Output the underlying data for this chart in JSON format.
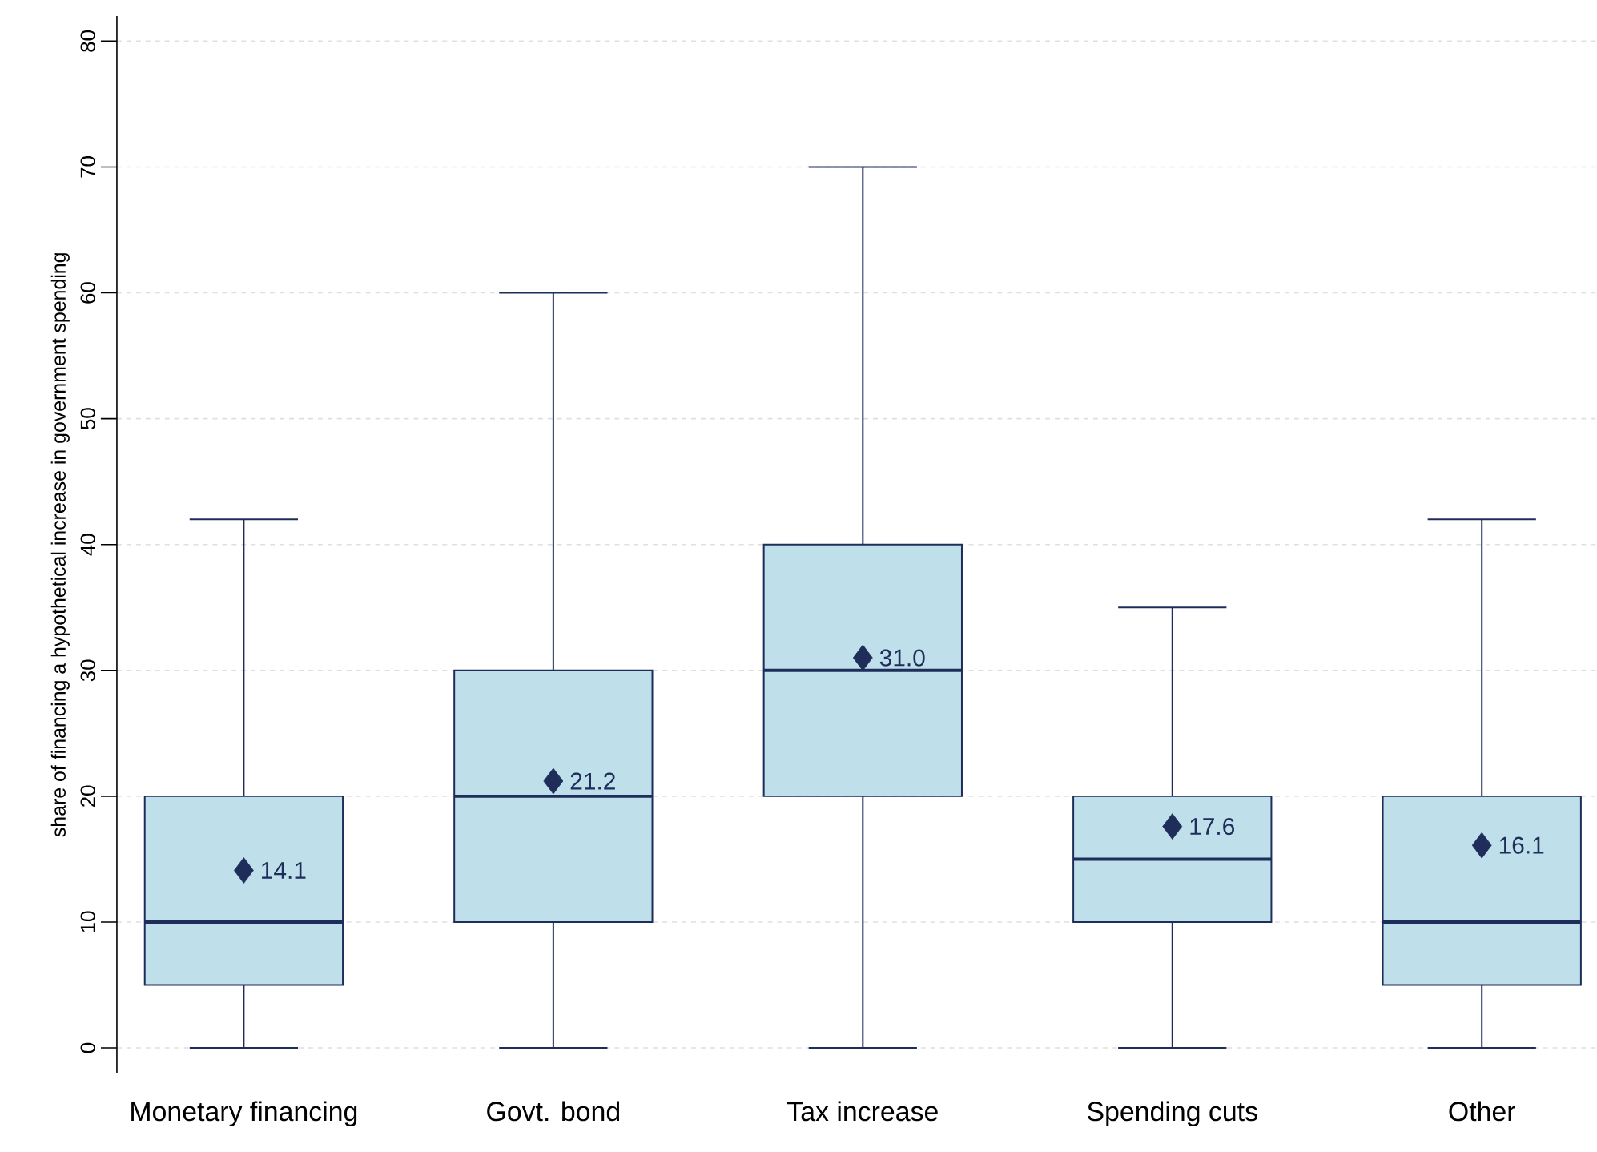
{
  "chart_data": {
    "type": "box",
    "ylabel": "share of financing a hypothetical increase in government spending",
    "categories": [
      "Monetary financing",
      "Govt. bond",
      "Tax increase",
      "Spending cuts",
      "Other"
    ],
    "boxes": [
      {
        "low": 0,
        "q1": 5,
        "median": 10,
        "q3": 20,
        "high": 42
      },
      {
        "low": 0,
        "q1": 10,
        "median": 20,
        "q3": 30,
        "high": 60
      },
      {
        "low": 0,
        "q1": 20,
        "median": 30,
        "q3": 40,
        "high": 70
      },
      {
        "low": 0,
        "q1": 10,
        "median": 15,
        "q3": 20,
        "high": 35
      },
      {
        "low": 0,
        "q1": 5,
        "median": 10,
        "q3": 20,
        "high": 42
      }
    ],
    "color": "#bfe0ea",
    "series": [
      {
        "type": "scatter",
        "x": [
          "Monetary financing",
          "Govt. bond",
          "Tax increase",
          "Spending cuts",
          "Other"
        ],
        "values": [
          14.1,
          21.2,
          31.0,
          17.6,
          16.1
        ],
        "value_labels": [
          "14.1",
          "21.2",
          "31.0",
          "17.6",
          "16.1"
        ],
        "color": "#1f2d5a",
        "marker": "diamond"
      }
    ],
    "ylim": [
      -2,
      82
    ],
    "yticks": [
      0,
      10,
      20,
      30,
      40,
      50,
      60,
      70,
      80
    ],
    "grid": "y"
  }
}
